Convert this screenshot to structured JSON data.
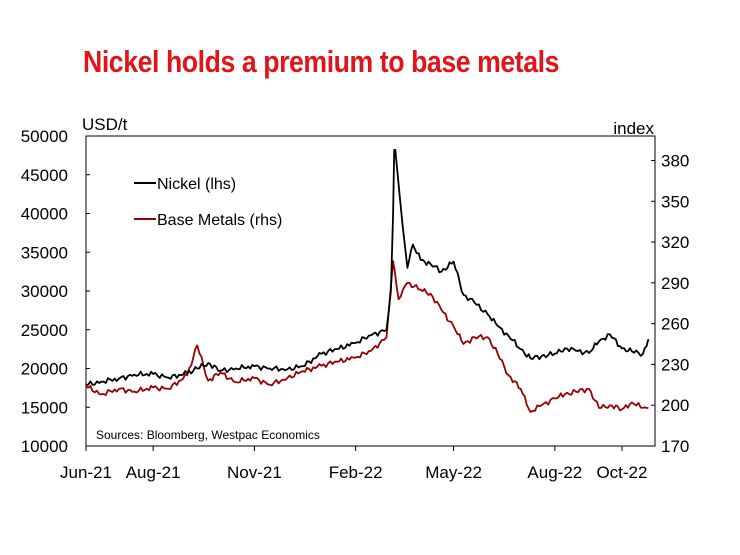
{
  "title": "Nickel holds a premium to base metals",
  "chart_data": {
    "type": "line",
    "title": "Nickel holds a premium to base metals",
    "y_left": {
      "label": "USD/t",
      "ticks": [
        10000,
        15000,
        20000,
        25000,
        30000,
        35000,
        40000,
        45000,
        50000
      ],
      "range": [
        10000,
        50000
      ]
    },
    "y_right": {
      "label": "index",
      "ticks": [
        170,
        200,
        230,
        260,
        290,
        320,
        350,
        380
      ],
      "range": [
        170,
        398
      ]
    },
    "x_axis": {
      "ticks": [
        "Jun-21",
        "Aug-21",
        "Nov-21",
        "Feb-22",
        "May-22",
        "Aug-22",
        "Oct-22"
      ]
    },
    "legend": {
      "placement": "top-left"
    },
    "source_note": "Sources: Bloomberg, Westpac Economics",
    "colors": {
      "nickel": "#000000",
      "base_metals": "#990000",
      "title": "#e1141a"
    },
    "series": [
      {
        "name": "Nickel (lhs)",
        "axis": "left",
        "x": [
          "2021-06-01",
          "2021-06-15",
          "2021-07-01",
          "2021-07-15",
          "2021-08-01",
          "2021-08-15",
          "2021-09-01",
          "2021-09-10",
          "2021-09-20",
          "2021-10-01",
          "2021-10-15",
          "2021-11-01",
          "2021-11-15",
          "2021-12-01",
          "2021-12-15",
          "2022-01-01",
          "2022-01-15",
          "2022-02-01",
          "2022-02-15",
          "2022-03-01",
          "2022-03-05",
          "2022-03-07",
          "2022-03-08",
          "2022-03-09",
          "2022-03-16",
          "2022-03-20",
          "2022-03-25",
          "2022-04-01",
          "2022-04-10",
          "2022-04-20",
          "2022-05-01",
          "2022-05-10",
          "2022-05-20",
          "2022-06-01",
          "2022-06-10",
          "2022-06-20",
          "2022-07-01",
          "2022-07-10",
          "2022-07-20",
          "2022-08-01",
          "2022-08-10",
          "2022-08-20",
          "2022-09-01",
          "2022-09-10",
          "2022-09-20",
          "2022-10-01",
          "2022-10-10",
          "2022-10-20",
          "2022-10-25"
        ],
        "values": [
          17900,
          18300,
          18700,
          19200,
          19300,
          18800,
          19400,
          20000,
          20700,
          19700,
          20000,
          20300,
          20000,
          19900,
          20300,
          21900,
          22500,
          23300,
          24300,
          25000,
          30000,
          40000,
          48200,
          48200,
          38000,
          33000,
          36000,
          34000,
          33500,
          32500,
          33800,
          29500,
          28500,
          27000,
          25500,
          24200,
          22500,
          21300,
          21600,
          21900,
          22600,
          22300,
          22000,
          23500,
          24400,
          22600,
          22200,
          21900,
          23800
        ]
      },
      {
        "name": "Base Metals (rhs)",
        "axis": "right",
        "x": [
          "2021-06-01",
          "2021-06-15",
          "2021-07-01",
          "2021-07-15",
          "2021-08-01",
          "2021-08-15",
          "2021-09-01",
          "2021-09-10",
          "2021-09-20",
          "2021-10-01",
          "2021-10-15",
          "2021-11-01",
          "2021-11-15",
          "2021-12-01",
          "2021-12-15",
          "2022-01-01",
          "2022-01-15",
          "2022-02-01",
          "2022-02-15",
          "2022-03-01",
          "2022-03-07",
          "2022-03-12",
          "2022-03-20",
          "2022-04-01",
          "2022-04-10",
          "2022-04-20",
          "2022-05-01",
          "2022-05-10",
          "2022-05-20",
          "2022-06-01",
          "2022-06-10",
          "2022-06-20",
          "2022-07-01",
          "2022-07-10",
          "2022-07-20",
          "2022-08-01",
          "2022-08-10",
          "2022-08-20",
          "2022-09-01",
          "2022-09-10",
          "2022-09-20",
          "2022-10-01",
          "2022-10-10",
          "2022-10-20",
          "2022-10-25"
        ],
        "values": [
          214,
          208,
          212,
          210,
          213,
          212,
          222,
          244,
          218,
          224,
          217,
          220,
          215,
          220,
          225,
          229,
          232,
          235,
          240,
          250,
          306,
          278,
          290,
          285,
          282,
          270,
          258,
          245,
          250,
          250,
          238,
          222,
          212,
          195,
          200,
          205,
          208,
          210,
          212,
          198,
          200,
          197,
          202,
          198,
          198
        ]
      }
    ]
  }
}
